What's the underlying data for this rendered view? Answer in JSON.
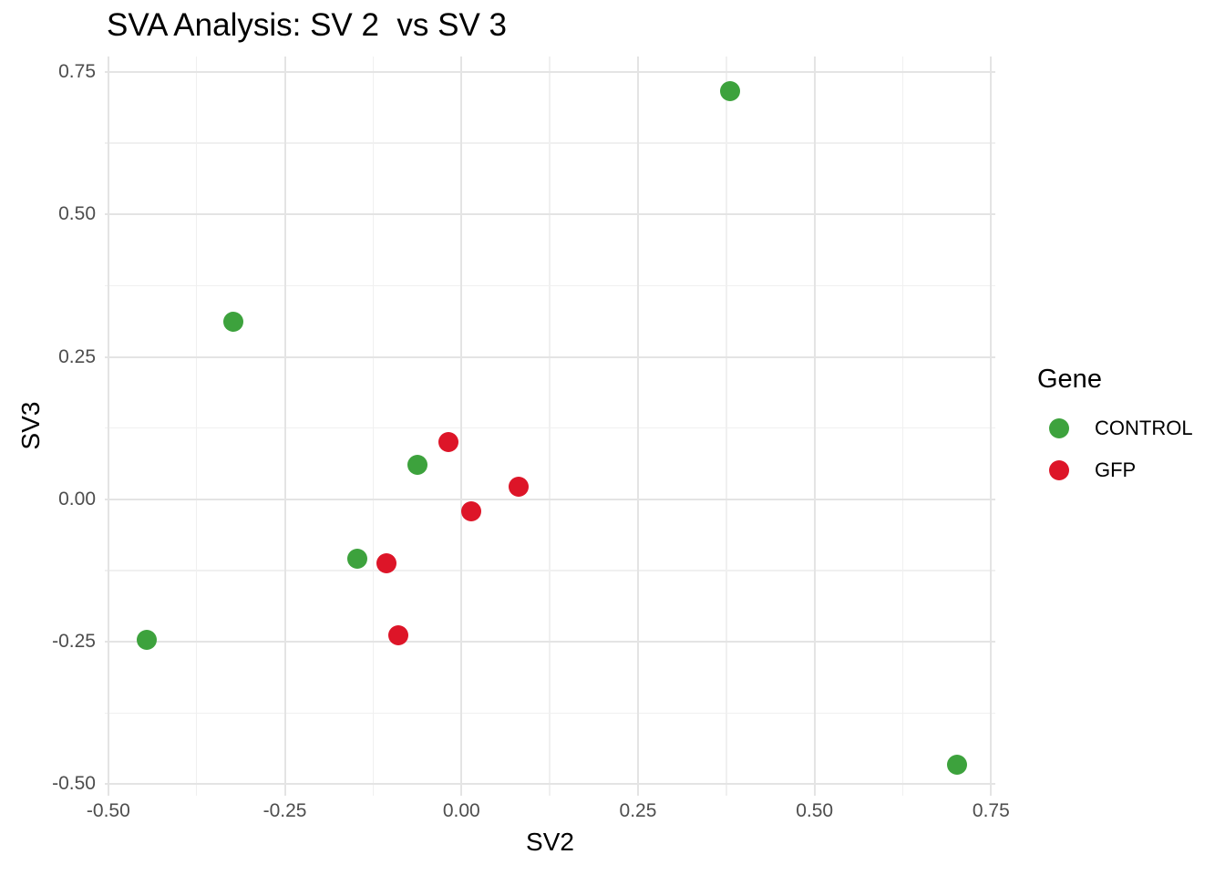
{
  "title": "SVA Analysis: SV 2  vs SV 3",
  "axes": {
    "x": {
      "label": "SV2"
    },
    "y": {
      "label": "SV3"
    }
  },
  "legend": {
    "title": "Gene",
    "items": [
      {
        "label": "CONTROL",
        "color": "#3da23d"
      },
      {
        "label": "GFP",
        "color": "#dd1528"
      }
    ]
  },
  "colors": {
    "background": "#ffffff",
    "grid_major": "#e4e4e4",
    "grid_minor": "#f0f0f0",
    "tick_text": "#4d4d4d",
    "control_green": "#3da23d",
    "gfp_red": "#dd1528"
  },
  "chart_data": {
    "type": "scatter",
    "title": "SVA Analysis: SV 2  vs SV 3",
    "xlabel": "SV2",
    "ylabel": "SV3",
    "xlim": [
      -0.505,
      0.756
    ],
    "ylim": [
      -0.52,
      0.777
    ],
    "x_major_breaks": [
      -0.5,
      -0.25,
      0.0,
      0.25,
      0.5,
      0.75
    ],
    "x_minor_breaks": [
      -0.375,
      -0.125,
      0.125,
      0.375,
      0.625
    ],
    "y_major_breaks": [
      0.75,
      0.5,
      0.25,
      0.0,
      -0.25,
      -0.5
    ],
    "y_minor_breaks": [
      0.625,
      0.375,
      0.125,
      -0.125,
      -0.375
    ],
    "x_tick_labels": [
      "-0.50",
      "-0.25",
      "0.00",
      "0.25",
      "0.50",
      "0.75"
    ],
    "y_tick_labels": [
      "0.75",
      "0.50",
      "0.25",
      "0.00",
      "-0.25",
      "-0.50"
    ],
    "grid": true,
    "legend_position": "right",
    "legend_title": "Gene",
    "series": [
      {
        "name": "CONTROL",
        "color": "#3da23d",
        "points": [
          [
            0.381,
            0.716
          ],
          [
            -0.323,
            0.312
          ],
          [
            -0.062,
            0.061
          ],
          [
            -0.147,
            -0.104
          ],
          [
            -0.446,
            -0.246
          ],
          [
            0.702,
            -0.465
          ]
        ]
      },
      {
        "name": "GFP",
        "color": "#dd1528",
        "points": [
          [
            -0.018,
            0.101
          ],
          [
            0.081,
            0.022
          ],
          [
            0.014,
            -0.021
          ],
          [
            -0.106,
            -0.112
          ],
          [
            -0.089,
            -0.238
          ]
        ]
      }
    ]
  }
}
